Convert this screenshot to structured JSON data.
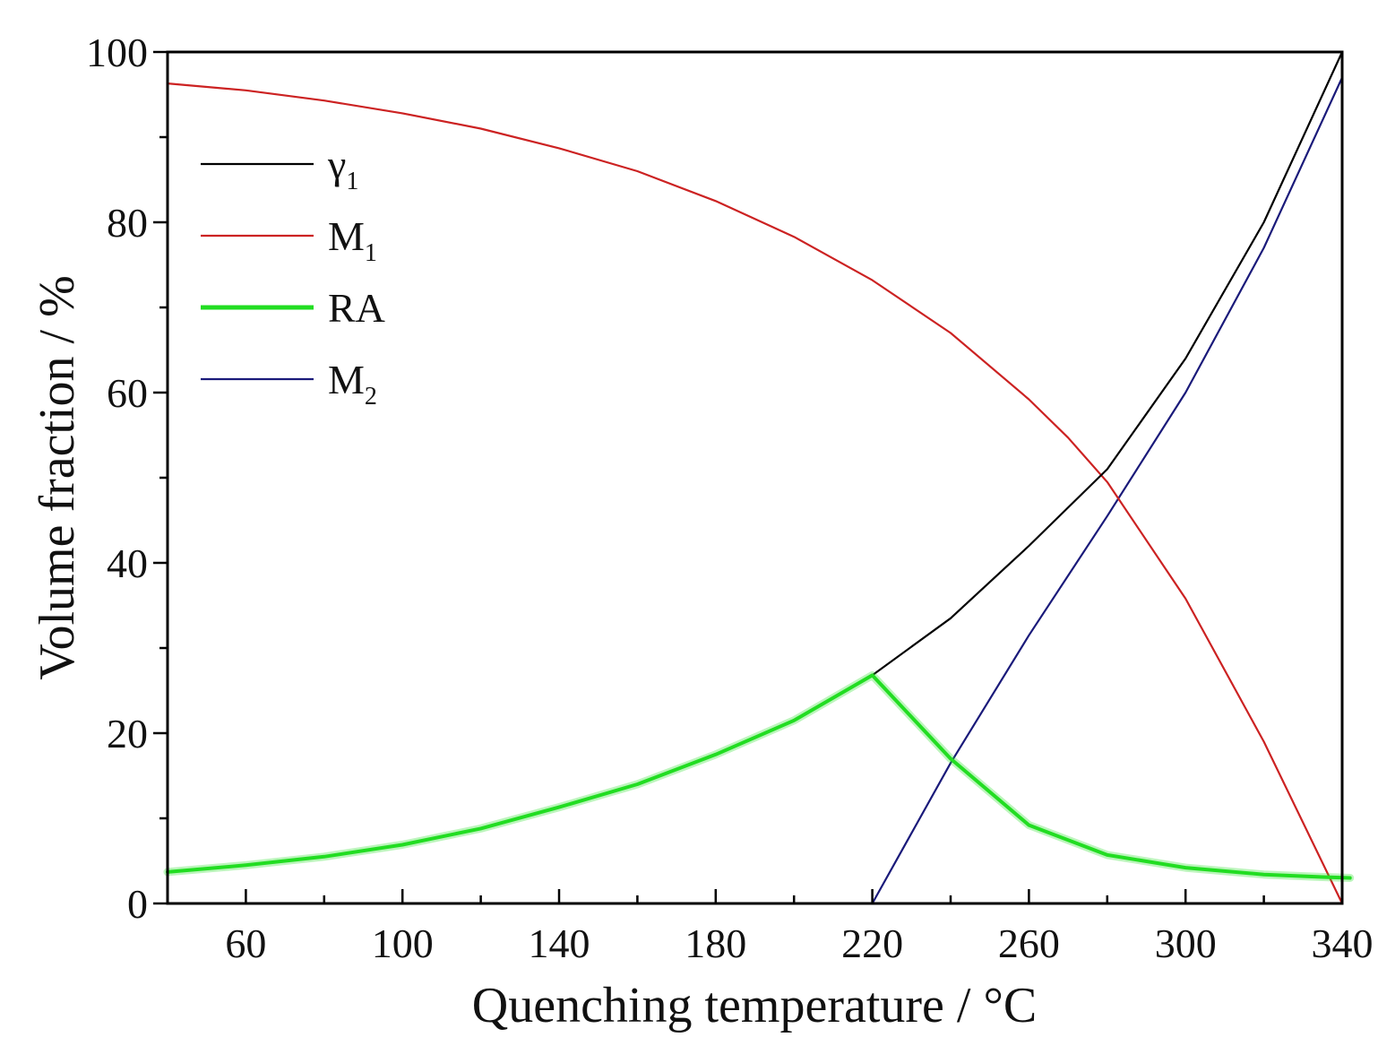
{
  "chart_data": {
    "type": "line",
    "title": "",
    "xlabel": "Quenching temperature / °C",
    "ylabel": "Volume fraction / %",
    "xlim": [
      40,
      340
    ],
    "ylim": [
      0,
      100
    ],
    "x_ticks": [
      60,
      100,
      140,
      180,
      220,
      260,
      300,
      340
    ],
    "y_ticks": [
      0,
      20,
      40,
      60,
      80,
      100
    ],
    "grid": false,
    "legend_position": "top-left",
    "series": [
      {
        "name": "γ1",
        "label_main": "γ",
        "label_sub": "1",
        "color": "#000000",
        "width": "thin",
        "points": [
          [
            220,
            26.8
          ],
          [
            240,
            33.5
          ],
          [
            260,
            42
          ],
          [
            280,
            51
          ],
          [
            300,
            64
          ],
          [
            320,
            80
          ],
          [
            340,
            100
          ]
        ]
      },
      {
        "name": "M1",
        "label_main": "M",
        "label_sub": "1",
        "color": "#cc2222",
        "width": "thin",
        "points": [
          [
            40,
            96.3
          ],
          [
            60,
            95.5
          ],
          [
            80,
            94.3
          ],
          [
            100,
            92.8
          ],
          [
            120,
            91
          ],
          [
            140,
            88.7
          ],
          [
            160,
            86
          ],
          [
            180,
            82.5
          ],
          [
            200,
            78.3
          ],
          [
            220,
            73.2
          ],
          [
            240,
            67
          ],
          [
            260,
            59.2
          ],
          [
            270,
            54.7
          ],
          [
            280,
            49.5
          ],
          [
            300,
            35.8
          ],
          [
            320,
            19
          ],
          [
            340,
            0
          ]
        ]
      },
      {
        "name": "RA",
        "label_main": "RA",
        "label_sub": "",
        "color": "#22dd22",
        "width": "thick",
        "points": [
          [
            40,
            3.7
          ],
          [
            60,
            4.5
          ],
          [
            80,
            5.5
          ],
          [
            100,
            6.9
          ],
          [
            120,
            8.8
          ],
          [
            140,
            11.3
          ],
          [
            160,
            14
          ],
          [
            180,
            17.5
          ],
          [
            200,
            21.5
          ],
          [
            220,
            26.8
          ],
          [
            240,
            17
          ],
          [
            260,
            9.2
          ],
          [
            280,
            5.7
          ],
          [
            300,
            4.2
          ],
          [
            320,
            3.4
          ],
          [
            335,
            3.1
          ],
          [
            342,
            3
          ]
        ]
      },
      {
        "name": "M2",
        "label_main": "M",
        "label_sub": "2",
        "color": "#1a1a7a",
        "width": "thin",
        "points": [
          [
            40,
            0
          ],
          [
            220,
            0
          ],
          [
            240,
            16.5
          ],
          [
            260,
            31.5
          ],
          [
            280,
            45.5
          ],
          [
            300,
            60
          ],
          [
            320,
            77
          ],
          [
            340,
            97
          ]
        ]
      }
    ]
  }
}
